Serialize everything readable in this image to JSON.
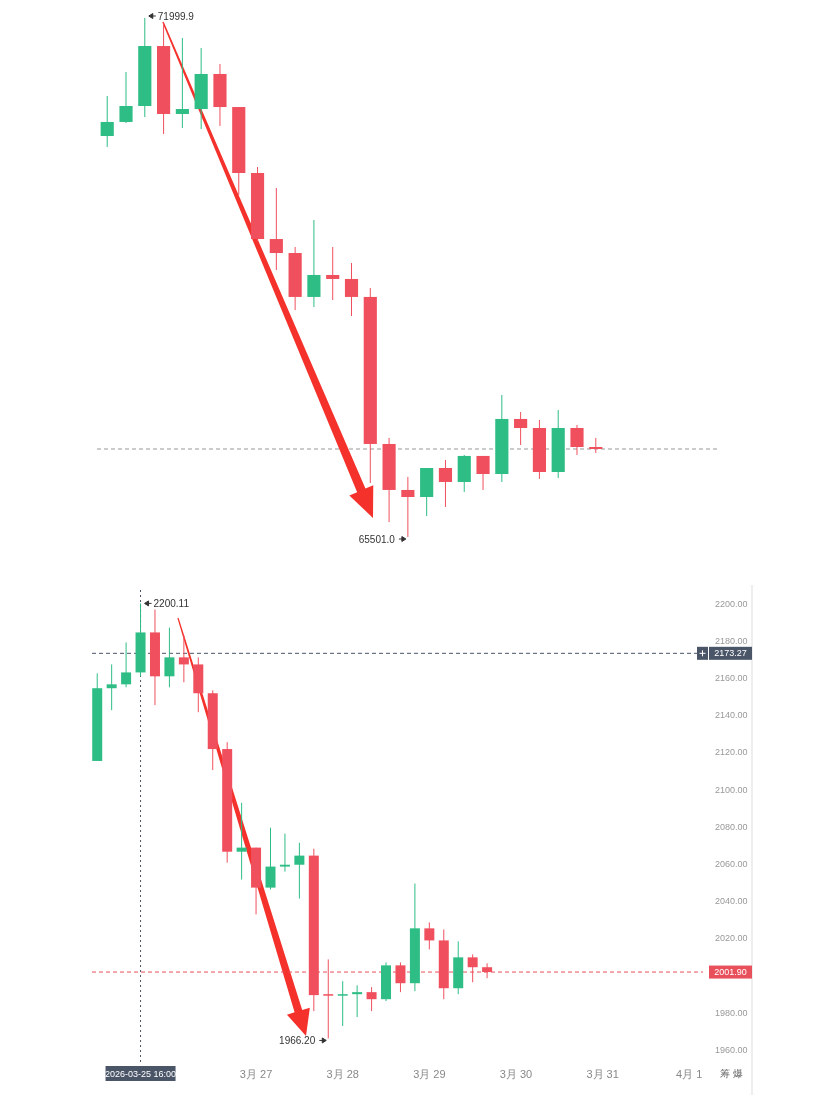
{
  "chart_data": [
    {
      "type": "candlestick",
      "categories": [
        null,
        null,
        null,
        null,
        null,
        null,
        null,
        null,
        null,
        null,
        null,
        null,
        null,
        null,
        null,
        null,
        null,
        null,
        null,
        null,
        null,
        null,
        null,
        null,
        null,
        null,
        null
      ],
      "ohlc": [
        [
          70522,
          71023,
          70385,
          70698
        ],
        [
          70698,
          71324,
          70685,
          70898
        ],
        [
          70898,
          71999.9,
          70760,
          71649
        ],
        [
          71649,
          71937,
          70547,
          70798
        ],
        [
          70798,
          71750,
          70623,
          70860
        ],
        [
          70860,
          71624,
          70610,
          71299
        ],
        [
          71299,
          71424,
          70648,
          70885
        ],
        [
          70885,
          70885,
          69783,
          70059
        ],
        [
          70059,
          70134,
          69207,
          69232
        ],
        [
          69232,
          69871,
          68844,
          69057
        ],
        [
          69057,
          69132,
          68343,
          68507
        ],
        [
          68507,
          69470,
          68381,
          68782
        ],
        [
          68782,
          69132,
          68469,
          68732
        ],
        [
          68732,
          68932,
          68268,
          68507
        ],
        [
          68507,
          68619,
          66177,
          66666
        ],
        [
          66666,
          66741,
          65689,
          66090
        ],
        [
          66090,
          66253,
          65501.0,
          66002
        ],
        [
          66002,
          66365,
          65764,
          66365
        ],
        [
          66365,
          66466,
          65877,
          66190
        ],
        [
          66190,
          66528,
          66065,
          66516
        ],
        [
          66516,
          66516,
          66090,
          66290
        ],
        [
          66290,
          67279,
          66190,
          66979
        ],
        [
          66979,
          67066,
          66653,
          66866
        ],
        [
          66866,
          66966,
          66228,
          66315
        ],
        [
          66315,
          67091,
          66240,
          66866
        ],
        [
          66866,
          66904,
          66528,
          66628
        ],
        [
          66628,
          66741,
          66553,
          66603
        ]
      ],
      "colors": [
        "#2ebd85",
        "#2ebd85",
        "#2ebd85",
        "#f0505e",
        "#2ebd85",
        "#2ebd85",
        "#f0505e",
        "#f0505e",
        "#f0505e",
        "#f0505e",
        "#f0505e",
        "#2ebd85",
        "#f0505e",
        "#f0505e",
        "#f0505e",
        "#f0505e",
        "#f0505e",
        "#2ebd85",
        "#f0505e",
        "#2ebd85",
        "#f0505e",
        "#2ebd85",
        "#f0505e",
        "#f0505e",
        "#2ebd85",
        "#f0505e",
        "#f0505e"
      ],
      "ref_lines": [
        {
          "axis": "y",
          "value": 66603,
          "line_style": "dashed",
          "color": "#999999"
        }
      ],
      "annotations": [
        "71999.9",
        "65501.0"
      ]
    },
    {
      "type": "candlestick",
      "categories": [
        null,
        null,
        null,
        "2026-03-25 16:00",
        null,
        null,
        null,
        null,
        null,
        null,
        null,
        "3月 27",
        null,
        null,
        null,
        null,
        null,
        "3月 28",
        null,
        null,
        null,
        null,
        null,
        "3月 29",
        null,
        null,
        null,
        null,
        null,
        "3月 30",
        null,
        null,
        null,
        null,
        null,
        "3月 31",
        null,
        null,
        null,
        null,
        null,
        "4月 1"
      ],
      "ohlc": [
        [
          2115.4,
          2162.5,
          2115.4,
          2154.5
        ],
        [
          2154.5,
          2167.3,
          2142.7,
          2156.6
        ],
        [
          2156.6,
          2179.1,
          2155.0,
          2163.0
        ],
        [
          2163.0,
          2200.11,
          2160.9,
          2184.5
        ],
        [
          2184.5,
          2196.8,
          2145.4,
          2160.9
        ],
        [
          2160.9,
          2187.1,
          2155.0,
          2171.1
        ],
        [
          2171.1,
          2182.9,
          2157.7,
          2167.3
        ],
        [
          2167.3,
          2171.1,
          2141.6,
          2151.8
        ],
        [
          2151.8,
          2153.4,
          2110.5,
          2121.8
        ],
        [
          2121.8,
          2125.5,
          2060.7,
          2066.6
        ],
        [
          2066.6,
          2092.9,
          2051.6,
          2068.8
        ],
        [
          2068.8,
          2068.8,
          2032.9,
          2047.3
        ],
        [
          2047.3,
          2079.5,
          2046.3,
          2058.6
        ],
        [
          2058.6,
          2076.3,
          2055.9,
          2059.6
        ],
        [
          2059.6,
          2071.4,
          2041.4,
          2064.5
        ],
        [
          2064.5,
          2068.2,
          1980.9,
          1989.5
        ],
        [
          1990.0,
          2008.7,
          1966.2,
          1989.5
        ],
        [
          1989.5,
          1997.0,
          1972.9,
          1990.0
        ],
        [
          1990.0,
          1994.8,
          1977.7,
          1991.1
        ],
        [
          1991.1,
          1993.8,
          1980.9,
          1987.3
        ],
        [
          1987.3,
          2007.1,
          1986.3,
          2005.5
        ],
        [
          2005.5,
          2007.1,
          1991.1,
          1995.9
        ],
        [
          1995.9,
          2049.5,
          1991.6,
          2025.4
        ],
        [
          2025.4,
          2028.6,
          2014.1,
          2018.9
        ],
        [
          2018.9,
          2024.8,
          1987.3,
          1993.2
        ],
        [
          1993.2,
          2018.4,
          1990.0,
          2009.8
        ],
        [
          2009.8,
          2011.4,
          1996.4,
          2004.5
        ],
        [
          2004.5,
          2006.6,
          1998.6,
          2001.9
        ],
        null,
        null,
        null,
        null,
        null,
        null,
        null,
        null,
        null,
        null,
        null,
        null,
        null,
        null
      ],
      "colors": [
        "#2ebd85",
        "#2ebd85",
        "#2ebd85",
        "#2ebd85",
        "#f0505e",
        "#2ebd85",
        "#f0505e",
        "#f0505e",
        "#f0505e",
        "#f0505e",
        "#2ebd85",
        "#f0505e",
        "#2ebd85",
        "#2ebd85",
        "#2ebd85",
        "#f0505e",
        "#f0505e",
        "#2ebd85",
        "#2ebd85",
        "#f0505e",
        "#2ebd85",
        "#f0505e",
        "#2ebd85",
        "#f0505e",
        "#f0505e",
        "#2ebd85",
        "#f0505e",
        "#f0505e",
        null,
        null,
        null,
        null,
        null,
        null,
        null,
        null,
        null,
        null,
        null,
        null,
        null,
        null
      ],
      "ylim": [
        1953,
        2210
      ],
      "yticks": [
        {
          "value": 1960,
          "label": "1960.00"
        },
        {
          "value": 1980,
          "label": "1980.00"
        },
        {
          "value": 2020,
          "label": "2020.00"
        },
        {
          "value": 2040,
          "label": "2040.00"
        },
        {
          "value": 2060,
          "label": "2060.00"
        },
        {
          "value": 2080,
          "label": "2080.00"
        },
        {
          "value": 2100,
          "label": "2100.00"
        },
        {
          "value": 2120,
          "label": "2120.00"
        },
        {
          "value": 2140,
          "label": "2140.00"
        },
        {
          "value": 2160,
          "label": "2160.00"
        },
        {
          "value": 2180,
          "label": "2180.00"
        },
        {
          "value": 2200,
          "label": "2200.00"
        }
      ],
      "ref_lines": [
        {
          "axis": "y",
          "value": 2173.27,
          "label": "2173.27",
          "line_style": "dashed",
          "color": "#4a5568"
        },
        {
          "axis": "y",
          "value": 2001.9,
          "label": "2001.90",
          "line_style": "dashed",
          "color": "#e8505b"
        },
        {
          "axis": "x",
          "value": "2026-03-25 16:00",
          "line_style": "dotted",
          "color": "#4a5568"
        }
      ],
      "annotations": [
        {
          "text": "2200.11",
          "x": "2026-03-25 16:00",
          "y": 2200.11
        },
        "1966.20",
        "筹 爆"
      ]
    }
  ]
}
